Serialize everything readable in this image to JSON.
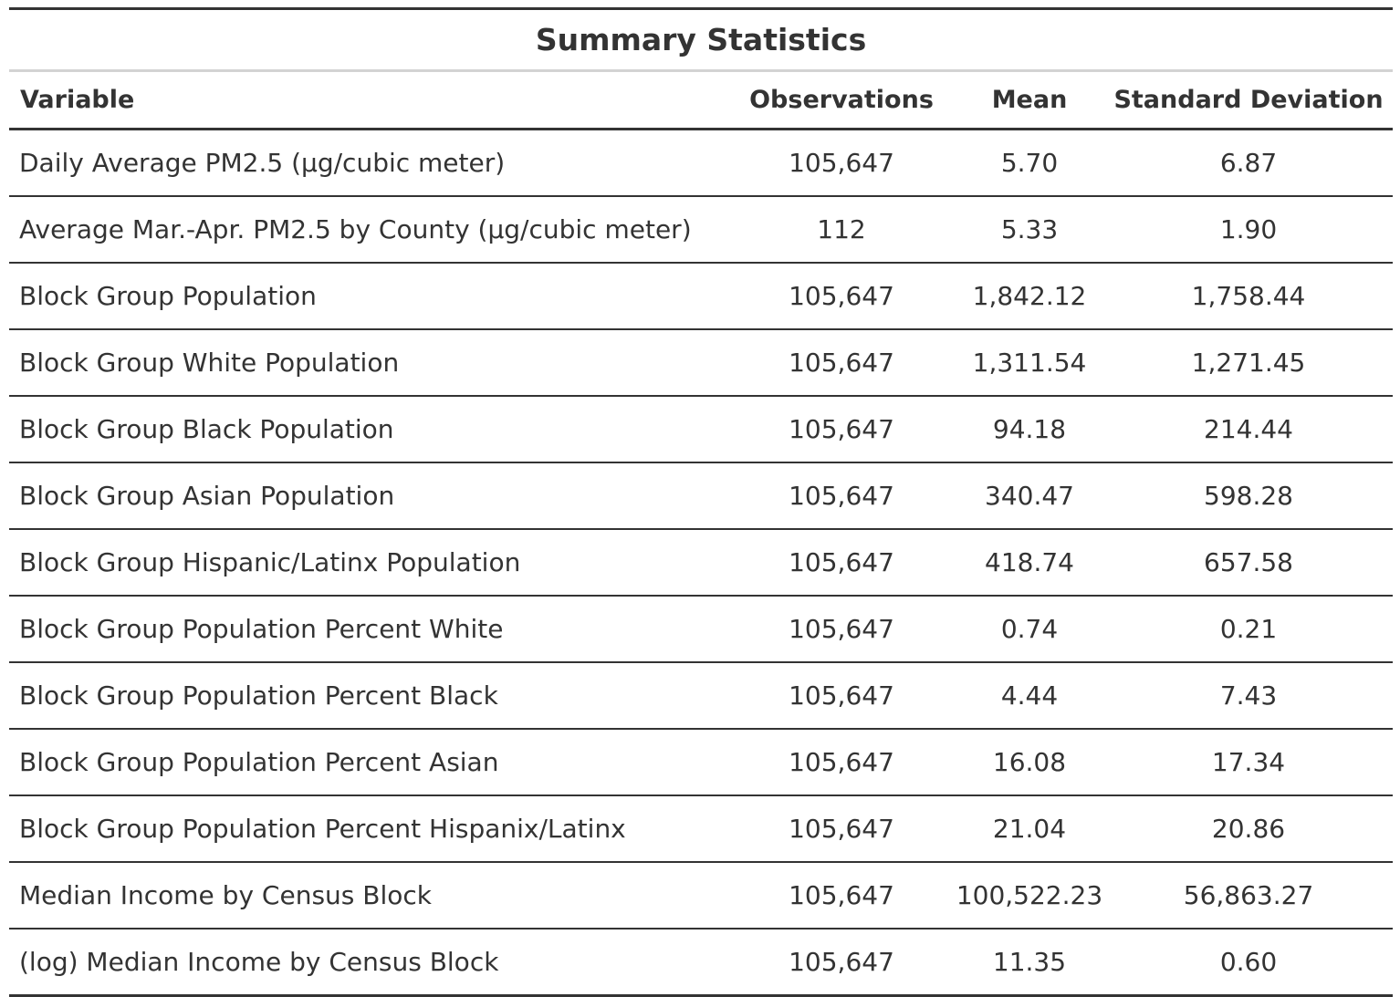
{
  "table": {
    "title": "Summary Statistics",
    "columns": [
      "Variable",
      "Observations",
      "Mean",
      "Standard Deviation"
    ],
    "rows": [
      {
        "variable": "Daily Average PM2.5 (µg/cubic meter)",
        "observations": "105,647",
        "mean": "5.70",
        "sd": "6.87"
      },
      {
        "variable": "Average Mar.-Apr. PM2.5 by County (µg/cubic meter)",
        "observations": "112",
        "mean": "5.33",
        "sd": "1.90"
      },
      {
        "variable": "Block Group Population",
        "observations": "105,647",
        "mean": "1,842.12",
        "sd": "1,758.44"
      },
      {
        "variable": "Block Group White Population",
        "observations": "105,647",
        "mean": "1,311.54",
        "sd": "1,271.45"
      },
      {
        "variable": "Block Group Black Population",
        "observations": "105,647",
        "mean": "94.18",
        "sd": "214.44"
      },
      {
        "variable": "Block Group Asian Population",
        "observations": "105,647",
        "mean": "340.47",
        "sd": "598.28"
      },
      {
        "variable": "Block Group Hispanic/Latinx Population",
        "observations": "105,647",
        "mean": "418.74",
        "sd": "657.58"
      },
      {
        "variable": "Block Group Population Percent White",
        "observations": "105,647",
        "mean": "0.74",
        "sd": "0.21"
      },
      {
        "variable": "Block Group Population Percent Black",
        "observations": "105,647",
        "mean": "4.44",
        "sd": "7.43"
      },
      {
        "variable": "Block Group Population Percent Asian",
        "observations": "105,647",
        "mean": "16.08",
        "sd": "17.34"
      },
      {
        "variable": "Block Group Population Percent Hispanix/Latinx",
        "observations": "105,647",
        "mean": "21.04",
        "sd": "20.86"
      },
      {
        "variable": "Median Income by Census Block",
        "observations": "105,647",
        "mean": "100,522.23",
        "sd": "56,863.27"
      },
      {
        "variable": "(log) Median Income by Census Block",
        "observations": "105,647",
        "mean": "11.35",
        "sd": "0.60"
      }
    ]
  }
}
